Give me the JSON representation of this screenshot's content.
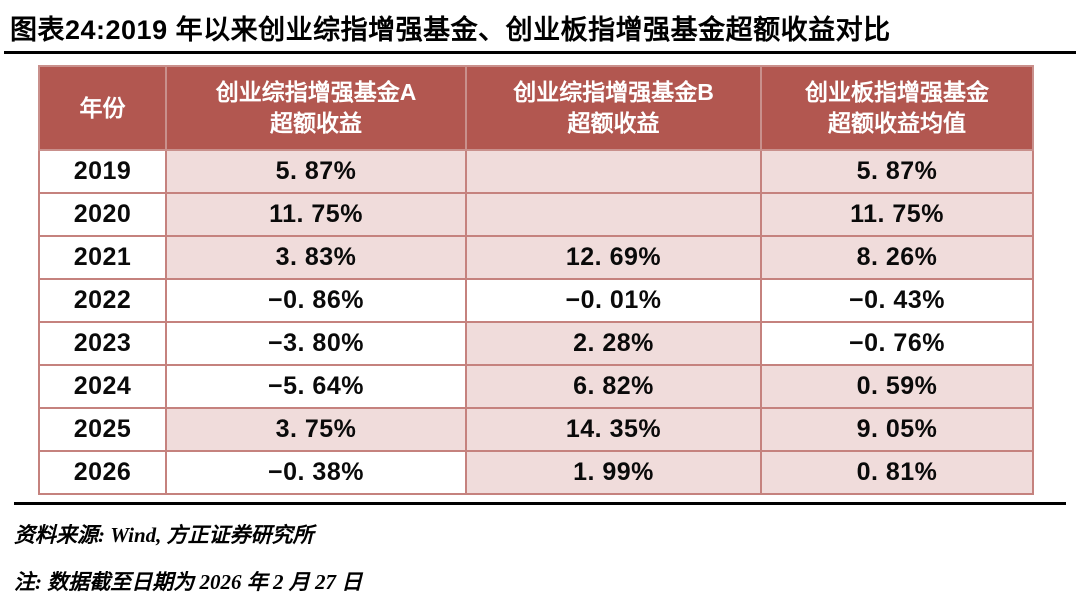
{
  "title": "图表24:2019 年以来创业综指增强基金、创业板指增强基金超额收益对比",
  "table": {
    "headers": [
      {
        "title": "年份",
        "subtitle": ""
      },
      {
        "title": "创业综指增强基金A",
        "subtitle": "超额收益"
      },
      {
        "title": "创业综指增强基金B",
        "subtitle": "超额收益"
      },
      {
        "title": "创业板指增强基金",
        "subtitle": "超额收益均值"
      }
    ],
    "rows": [
      {
        "year": "2019",
        "cells": [
          {
            "text": "5. 87%",
            "highlight": true
          },
          {
            "text": "",
            "highlight": true
          },
          {
            "text": "5. 87%",
            "highlight": true
          }
        ]
      },
      {
        "year": "2020",
        "cells": [
          {
            "text": "11. 75%",
            "highlight": true
          },
          {
            "text": "",
            "highlight": true
          },
          {
            "text": "11. 75%",
            "highlight": true
          }
        ]
      },
      {
        "year": "2021",
        "cells": [
          {
            "text": "3. 83%",
            "highlight": true
          },
          {
            "text": "12. 69%",
            "highlight": true
          },
          {
            "text": "8. 26%",
            "highlight": true
          }
        ]
      },
      {
        "year": "2022",
        "cells": [
          {
            "text": "−0. 86%",
            "highlight": false
          },
          {
            "text": "−0. 01%",
            "highlight": false
          },
          {
            "text": "−0. 43%",
            "highlight": false
          }
        ]
      },
      {
        "year": "2023",
        "cells": [
          {
            "text": "−3. 80%",
            "highlight": false
          },
          {
            "text": "2. 28%",
            "highlight": true
          },
          {
            "text": "−0. 76%",
            "highlight": false
          }
        ]
      },
      {
        "year": "2024",
        "cells": [
          {
            "text": "−5. 64%",
            "highlight": false
          },
          {
            "text": "6. 82%",
            "highlight": true
          },
          {
            "text": "0. 59%",
            "highlight": true
          }
        ]
      },
      {
        "year": "2025",
        "cells": [
          {
            "text": "3. 75%",
            "highlight": true
          },
          {
            "text": "14. 35%",
            "highlight": true
          },
          {
            "text": "9. 05%",
            "highlight": true
          }
        ]
      },
      {
        "year": "2026",
        "cells": [
          {
            "text": "−0. 38%",
            "highlight": false
          },
          {
            "text": "1. 99%",
            "highlight": true
          },
          {
            "text": "0. 81%",
            "highlight": true
          }
        ]
      }
    ]
  },
  "footer": {
    "source": "资料来源: Wind, 方正证券研究所",
    "note": "注: 数据截至日期为 2026 年 2 月 27 日"
  },
  "colors": {
    "header_bg": "#B25750",
    "header_text": "#FFFFFF",
    "header_border": "#C9908C",
    "highlight_cell_bg": "#F0DCDB",
    "cell_border": "#C5827E",
    "divider": "#000000"
  }
}
